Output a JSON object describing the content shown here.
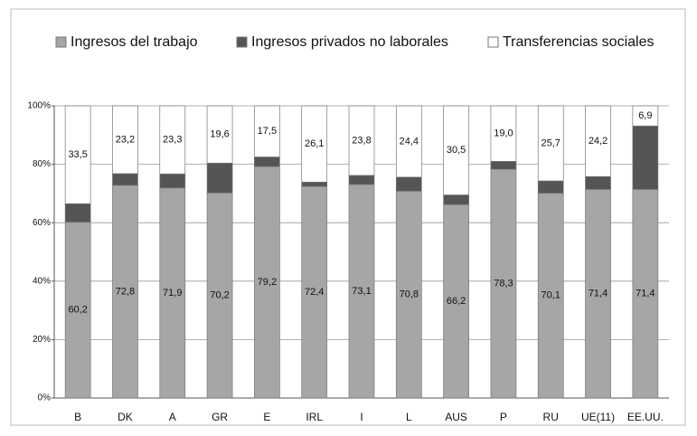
{
  "chart_data": {
    "type": "stacked_bar",
    "categories": [
      "B",
      "DK",
      "A",
      "GR",
      "E",
      "IRL",
      "I",
      "L",
      "AUS",
      "P",
      "RU",
      "UE(11)",
      "EE.UU."
    ],
    "series": [
      {
        "name": "Ingresos del trabajo",
        "color": "#a6a6a6",
        "values": [
          60.2,
          72.8,
          71.9,
          70.2,
          79.2,
          72.4,
          73.1,
          70.8,
          66.2,
          78.3,
          70.1,
          71.4,
          71.4
        ],
        "value_labels": [
          "60,2",
          "72,8",
          "71,9",
          "70,2",
          "79,2",
          "72,4",
          "73,1",
          "70,8",
          "66,2",
          "78,3",
          "70,1",
          "71,4",
          "71,4"
        ]
      },
      {
        "name": "Ingresos privados no laborales",
        "color": "#555555",
        "values": [
          6.3,
          4.0,
          4.8,
          10.2,
          3.3,
          1.5,
          3.1,
          4.8,
          3.3,
          2.7,
          4.2,
          4.4,
          21.7
        ]
      },
      {
        "name": "Transferencias sociales",
        "color": "#ffffff",
        "values": [
          33.5,
          23.2,
          23.3,
          19.6,
          17.5,
          26.1,
          23.8,
          24.4,
          30.5,
          19.0,
          25.7,
          24.2,
          6.9
        ],
        "value_labels": [
          "33,5",
          "23,2",
          "23,3",
          "19,6",
          "17,5",
          "26,1",
          "23,8",
          "24,4",
          "30,5",
          "19,0",
          "25,7",
          "24,2",
          "6,9"
        ]
      }
    ],
    "ylim": [
      0,
      100
    ],
    "yticks": [
      {
        "value": 0,
        "label": "0%"
      },
      {
        "value": 20,
        "label": "20%"
      },
      {
        "value": 40,
        "label": "40%"
      },
      {
        "value": 60,
        "label": "60%"
      },
      {
        "value": 80,
        "label": "80%"
      },
      {
        "value": 100,
        "label": "100%"
      }
    ],
    "grid": true,
    "legend": "top"
  }
}
